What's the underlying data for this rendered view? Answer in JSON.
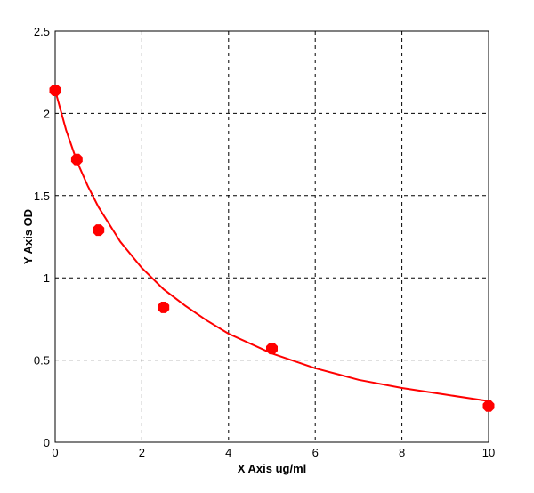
{
  "chart_data": {
    "type": "scatter",
    "xlabel": "X Axis ug/ml",
    "ylabel": "Y Axis OD",
    "xlim": [
      0,
      10
    ],
    "ylim": [
      0,
      2.5
    ],
    "x_ticks": [
      "0",
      "2",
      "4",
      "6",
      "8",
      "10"
    ],
    "y_ticks": [
      "0",
      "0.5",
      "1",
      "1.5",
      "2",
      "2.5"
    ],
    "grid": true,
    "points": {
      "x": [
        0,
        0.5,
        1,
        2.5,
        5,
        10
      ],
      "y": [
        2.14,
        1.72,
        1.29,
        0.82,
        0.57,
        0.22
      ]
    },
    "fit_curve": {
      "x": [
        0,
        0.25,
        0.5,
        0.75,
        1,
        1.5,
        2,
        2.5,
        3,
        3.5,
        4,
        5,
        6,
        7,
        8,
        9,
        10
      ],
      "y": [
        2.14,
        1.9,
        1.71,
        1.56,
        1.43,
        1.22,
        1.06,
        0.93,
        0.83,
        0.74,
        0.66,
        0.54,
        0.45,
        0.38,
        0.33,
        0.29,
        0.25
      ]
    },
    "series_color": "#ff0000",
    "axis_color": "#000000",
    "grid_color": "#000000"
  }
}
